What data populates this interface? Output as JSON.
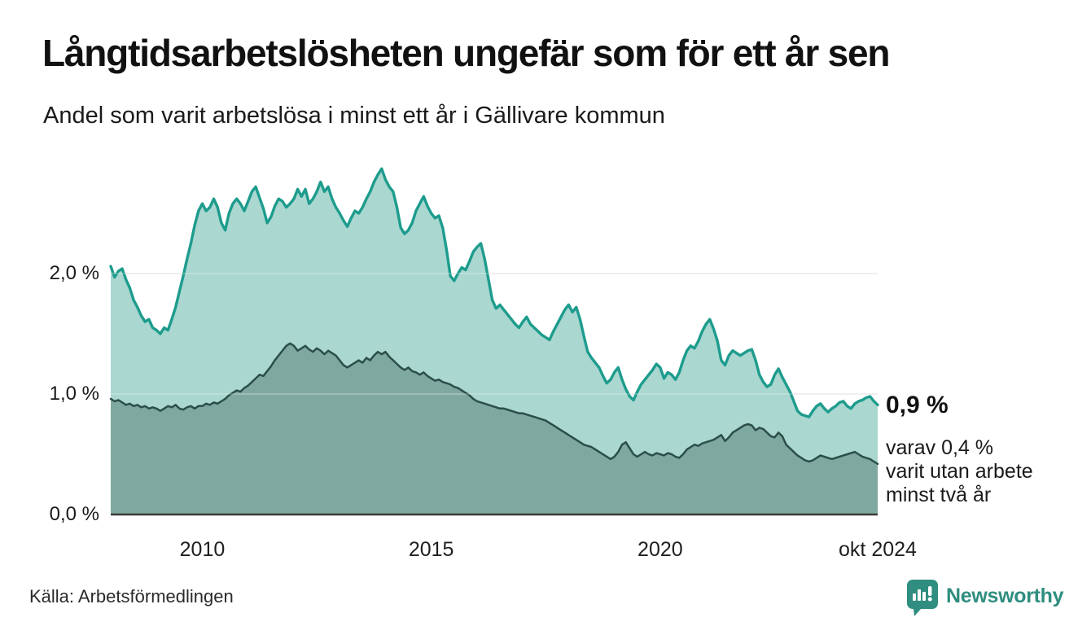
{
  "header": {
    "title": "Långtidsarbetslösheten ungefär som för ett år sen",
    "subtitle": "Andel som varit arbetslösa i minst ett år i Gällivare kommun"
  },
  "annotation": {
    "latest_total": "0,9 %",
    "latest_sub_lines": [
      "varav 0,4 %",
      "varit utan arbete",
      "minst två år"
    ]
  },
  "footer": {
    "source": "Källa: Arbetsförmedlingen",
    "brand": "Newsworthy"
  },
  "colors": {
    "background": "#ffffff",
    "title_text": "#111111",
    "body_text": "#1a1a1a",
    "gridline": "#e3e3e3",
    "axis_line": "#3a3a3a",
    "brand_teal": "#2f8e7f"
  },
  "chart_data": {
    "type": "area",
    "title": "Långtidsarbetslösheten ungefär som för ett år sen",
    "subtitle": "Andel som varit arbetslösa i minst ett år i Gällivare kommun",
    "unit": "%",
    "x_cadence": "monthly",
    "x_range": [
      2008.0,
      2024.75
    ],
    "x_range_label": "jan 2008 – okt 2024",
    "ylim": [
      0,
      2.95
    ],
    "grid": "horizontal",
    "legend_position": "none",
    "x_ticks": [
      {
        "t": 2010.0,
        "label": "2010"
      },
      {
        "t": 2015.0,
        "label": "2015"
      },
      {
        "t": 2020.0,
        "label": "2020"
      },
      {
        "t": 2024.75,
        "label": "okt 2024"
      }
    ],
    "y_ticks": [
      {
        "v": 0.0,
        "label": "0,0 %"
      },
      {
        "v": 1.0,
        "label": "1,0 %"
      },
      {
        "v": 2.0,
        "label": "2,0 %"
      }
    ],
    "series": [
      {
        "name": "Andel arbetslösa minst ett år",
        "stroke": "#1d9c8d",
        "fill": "#aad7d0",
        "stroke_width": 3.4,
        "latest_value": 0.9,
        "values": [
          2.06,
          1.97,
          2.02,
          2.04,
          1.95,
          1.88,
          1.78,
          1.72,
          1.65,
          1.6,
          1.62,
          1.55,
          1.53,
          1.5,
          1.55,
          1.53,
          1.62,
          1.72,
          1.85,
          1.98,
          2.12,
          2.25,
          2.4,
          2.52,
          2.58,
          2.52,
          2.55,
          2.62,
          2.55,
          2.42,
          2.36,
          2.5,
          2.58,
          2.62,
          2.58,
          2.52,
          2.6,
          2.68,
          2.72,
          2.63,
          2.54,
          2.42,
          2.47,
          2.56,
          2.62,
          2.6,
          2.55,
          2.58,
          2.62,
          2.7,
          2.64,
          2.7,
          2.58,
          2.62,
          2.68,
          2.76,
          2.68,
          2.72,
          2.62,
          2.55,
          2.5,
          2.44,
          2.39,
          2.46,
          2.52,
          2.5,
          2.55,
          2.62,
          2.68,
          2.76,
          2.82,
          2.87,
          2.78,
          2.72,
          2.68,
          2.55,
          2.38,
          2.33,
          2.36,
          2.42,
          2.52,
          2.58,
          2.64,
          2.56,
          2.5,
          2.46,
          2.48,
          2.38,
          2.2,
          1.98,
          1.94,
          2.0,
          2.05,
          2.03,
          2.1,
          2.18,
          2.22,
          2.25,
          2.12,
          1.95,
          1.78,
          1.71,
          1.74,
          1.7,
          1.66,
          1.62,
          1.58,
          1.55,
          1.6,
          1.64,
          1.58,
          1.55,
          1.52,
          1.49,
          1.47,
          1.45,
          1.52,
          1.58,
          1.64,
          1.7,
          1.74,
          1.68,
          1.72,
          1.62,
          1.48,
          1.35,
          1.3,
          1.26,
          1.22,
          1.15,
          1.09,
          1.12,
          1.18,
          1.22,
          1.12,
          1.04,
          0.98,
          0.95,
          1.02,
          1.08,
          1.12,
          1.16,
          1.2,
          1.25,
          1.22,
          1.13,
          1.18,
          1.16,
          1.12,
          1.18,
          1.28,
          1.36,
          1.4,
          1.38,
          1.44,
          1.52,
          1.58,
          1.62,
          1.54,
          1.44,
          1.28,
          1.24,
          1.32,
          1.36,
          1.34,
          1.32,
          1.34,
          1.36,
          1.37,
          1.28,
          1.16,
          1.1,
          1.06,
          1.08,
          1.16,
          1.21,
          1.14,
          1.08,
          1.02,
          0.94,
          0.86,
          0.83,
          0.82,
          0.81,
          0.86,
          0.9,
          0.92,
          0.88,
          0.85,
          0.88,
          0.9,
          0.93,
          0.94,
          0.9,
          0.88,
          0.92,
          0.94,
          0.95,
          0.97,
          0.98,
          0.94,
          0.91
        ]
      },
      {
        "name": "Varav utan arbete minst två år",
        "stroke": "#2b4f48",
        "fill": "#7fa9a0",
        "stroke_width": 2.5,
        "latest_value": 0.4,
        "values": [
          0.96,
          0.94,
          0.95,
          0.93,
          0.91,
          0.92,
          0.9,
          0.91,
          0.89,
          0.9,
          0.88,
          0.89,
          0.88,
          0.86,
          0.88,
          0.9,
          0.89,
          0.91,
          0.88,
          0.87,
          0.89,
          0.9,
          0.88,
          0.9,
          0.9,
          0.92,
          0.91,
          0.93,
          0.92,
          0.94,
          0.96,
          0.99,
          1.01,
          1.03,
          1.02,
          1.05,
          1.07,
          1.1,
          1.13,
          1.16,
          1.15,
          1.19,
          1.23,
          1.28,
          1.32,
          1.36,
          1.4,
          1.42,
          1.4,
          1.36,
          1.38,
          1.4,
          1.37,
          1.35,
          1.38,
          1.36,
          1.33,
          1.36,
          1.34,
          1.32,
          1.28,
          1.24,
          1.22,
          1.24,
          1.26,
          1.28,
          1.26,
          1.3,
          1.28,
          1.32,
          1.35,
          1.33,
          1.35,
          1.31,
          1.28,
          1.25,
          1.22,
          1.2,
          1.22,
          1.19,
          1.18,
          1.16,
          1.18,
          1.15,
          1.13,
          1.11,
          1.12,
          1.1,
          1.09,
          1.08,
          1.06,
          1.05,
          1.03,
          1.01,
          0.99,
          0.96,
          0.94,
          0.93,
          0.92,
          0.91,
          0.9,
          0.89,
          0.88,
          0.88,
          0.87,
          0.86,
          0.85,
          0.84,
          0.84,
          0.83,
          0.82,
          0.81,
          0.8,
          0.79,
          0.78,
          0.76,
          0.74,
          0.72,
          0.7,
          0.68,
          0.66,
          0.64,
          0.62,
          0.6,
          0.58,
          0.57,
          0.56,
          0.54,
          0.52,
          0.5,
          0.48,
          0.46,
          0.48,
          0.52,
          0.58,
          0.6,
          0.55,
          0.5,
          0.48,
          0.5,
          0.52,
          0.5,
          0.49,
          0.51,
          0.5,
          0.49,
          0.51,
          0.5,
          0.48,
          0.47,
          0.5,
          0.54,
          0.56,
          0.58,
          0.57,
          0.59,
          0.6,
          0.61,
          0.62,
          0.64,
          0.66,
          0.61,
          0.64,
          0.68,
          0.7,
          0.72,
          0.74,
          0.75,
          0.74,
          0.7,
          0.72,
          0.71,
          0.68,
          0.65,
          0.64,
          0.68,
          0.65,
          0.58,
          0.55,
          0.52,
          0.49,
          0.47,
          0.45,
          0.44,
          0.45,
          0.47,
          0.49,
          0.48,
          0.47,
          0.46,
          0.47,
          0.48,
          0.49,
          0.5,
          0.51,
          0.52,
          0.5,
          0.48,
          0.47,
          0.46,
          0.44,
          0.42
        ]
      }
    ]
  }
}
